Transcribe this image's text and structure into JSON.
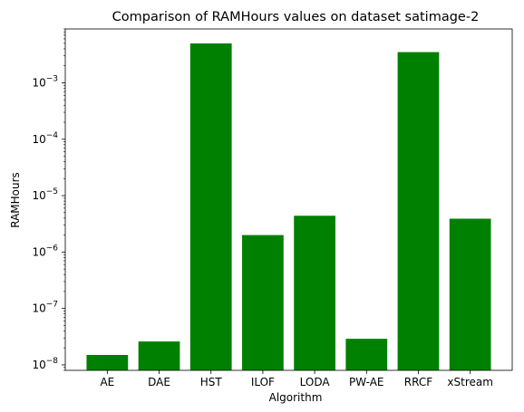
{
  "chart_data": {
    "type": "bar",
    "title": "Comparison of RAMHours values on dataset satimage-2",
    "xlabel": "Algorithm",
    "ylabel": "RAMHours",
    "yscale": "log",
    "ylim": [
      8e-09,
      0.009
    ],
    "yticks": [
      {
        "value": 1e-08,
        "base": "10",
        "exp": "−8"
      },
      {
        "value": 1e-07,
        "base": "10",
        "exp": "−7"
      },
      {
        "value": 1e-06,
        "base": "10",
        "exp": "−6"
      },
      {
        "value": 1e-05,
        "base": "10",
        "exp": "−5"
      },
      {
        "value": 0.0001,
        "base": "10",
        "exp": "−4"
      },
      {
        "value": 0.001,
        "base": "10",
        "exp": "−3"
      }
    ],
    "categories": [
      "AE",
      "DAE",
      "HST",
      "ILOF",
      "LODA",
      "PW-AE",
      "RRCF",
      "xStream"
    ],
    "values": [
      1.5e-08,
      2.6e-08,
      0.005,
      2e-06,
      4.4e-06,
      2.9e-08,
      0.0035,
      3.9e-06
    ],
    "bar_color": "#008000",
    "grid": false,
    "legend": "none"
  }
}
